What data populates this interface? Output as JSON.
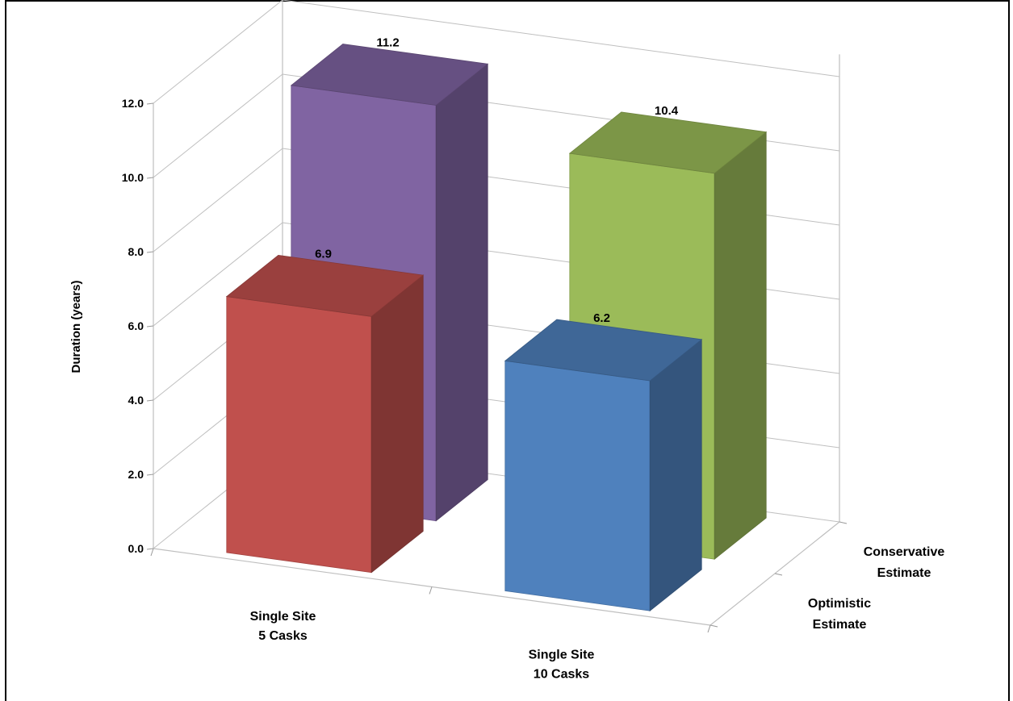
{
  "chart_data": {
    "type": "bar",
    "subtype": "3d-column",
    "title": "",
    "ylabel": "Duration (years)",
    "ylim": [
      0,
      12
    ],
    "yticks": [
      "0.0",
      "2.0",
      "4.0",
      "6.0",
      "8.0",
      "10.0",
      "12.0"
    ],
    "categories": [
      {
        "line1": "Single Site",
        "line2": "5 Casks"
      },
      {
        "line1": "Single Site",
        "line2": "10 Casks"
      }
    ],
    "depth_series": [
      {
        "line1": "Optimistic",
        "line2": "Estimate"
      },
      {
        "line1": "Conservative",
        "line2": "Estimate"
      }
    ],
    "bars": [
      {
        "category": 0,
        "series": 0,
        "value": 6.9,
        "label": "6.9",
        "color": "#C0504D"
      },
      {
        "category": 0,
        "series": 1,
        "value": 11.2,
        "label": "11.2",
        "color": "#8064A2"
      },
      {
        "category": 1,
        "series": 0,
        "value": 6.2,
        "label": "6.2",
        "color": "#4F81BD"
      },
      {
        "category": 1,
        "series": 1,
        "value": 10.4,
        "label": "10.4",
        "color": "#9BBB59"
      }
    ],
    "grid": true,
    "legend": "none"
  }
}
